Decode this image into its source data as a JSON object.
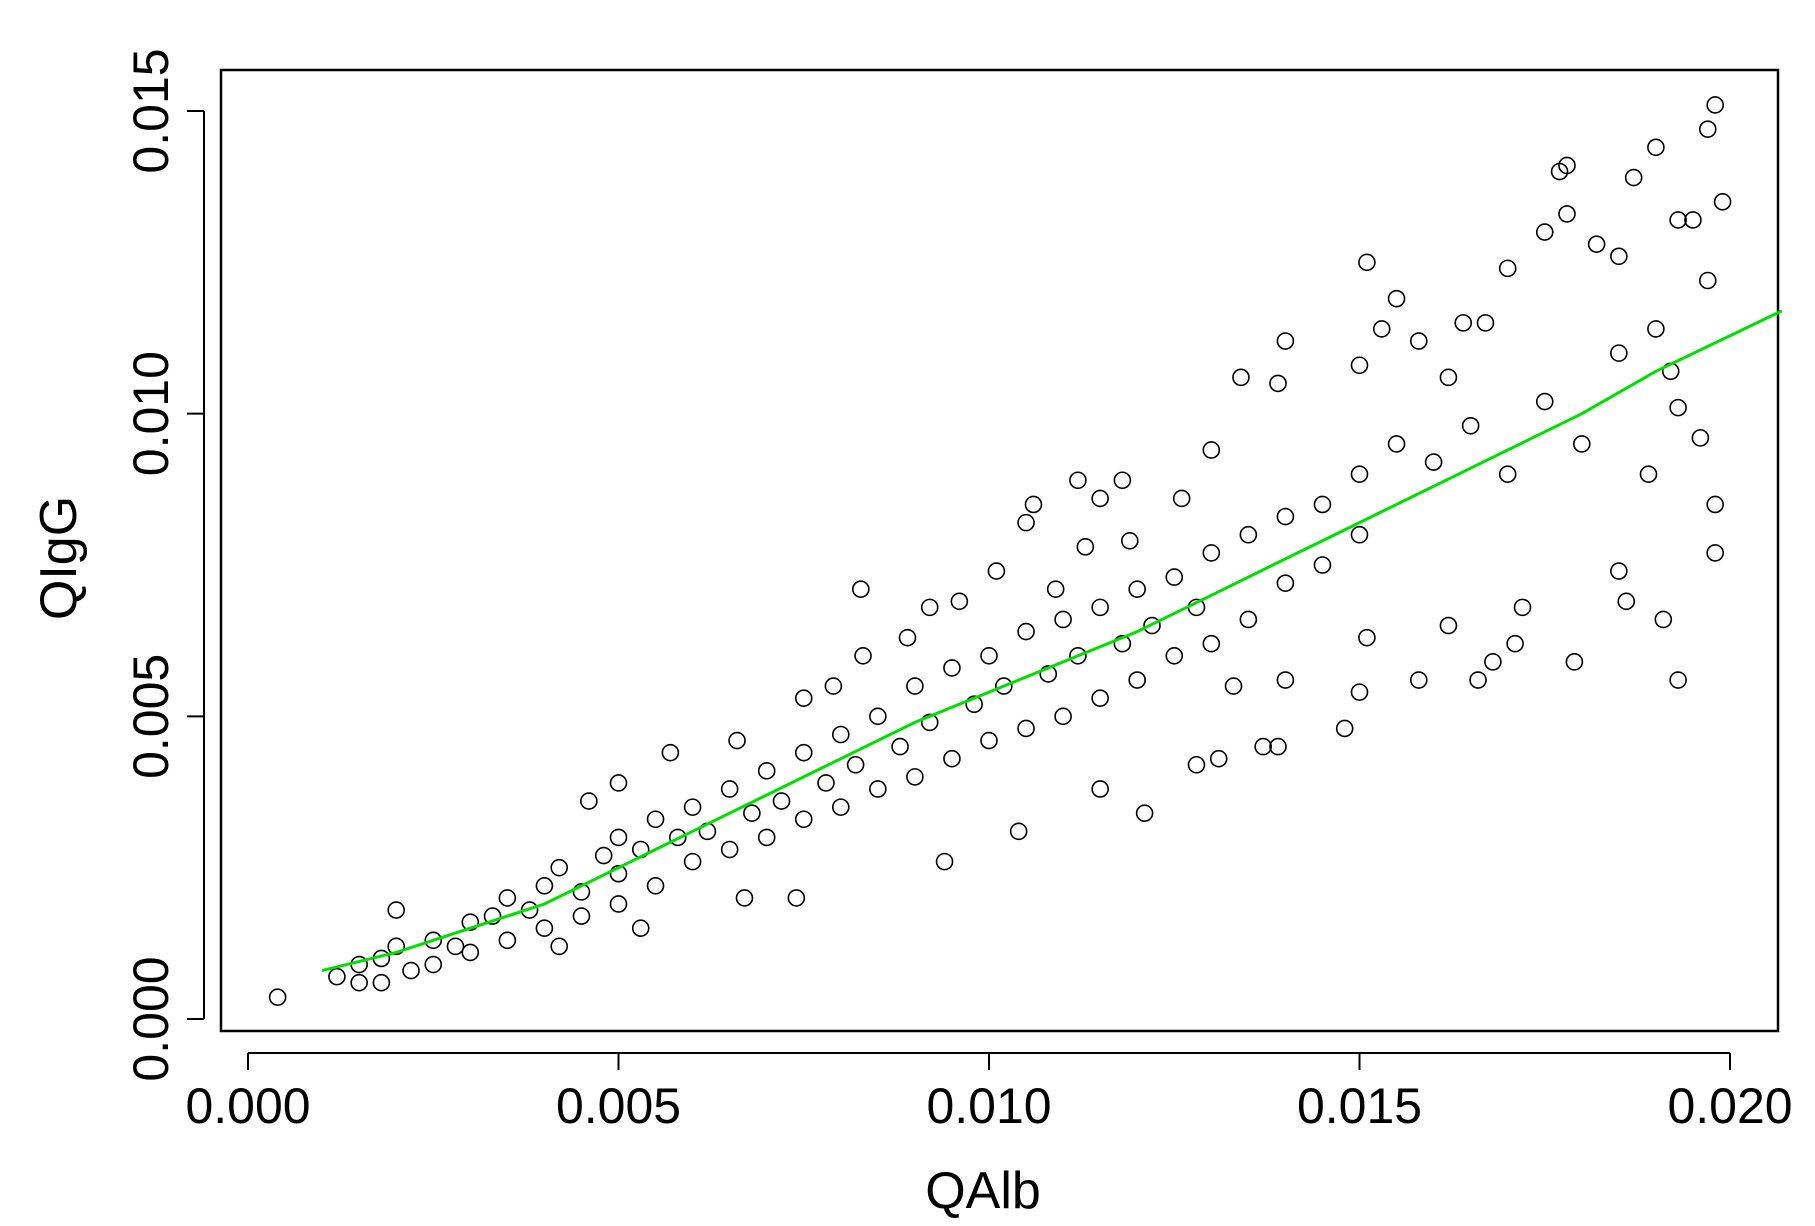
{
  "chart_data": {
    "type": "scatter",
    "title": "",
    "xlabel": "QAlb",
    "ylabel": "QIgG",
    "xlim": [
      -0.0004,
      0.0207
    ],
    "ylim": [
      -0.0004,
      0.0158
    ],
    "x_ticks": [
      0.0,
      0.005,
      0.01,
      0.015,
      0.02
    ],
    "x_tick_labels": [
      "0.000",
      "0.005",
      "0.010",
      "0.015",
      "0.020"
    ],
    "y_ticks": [
      0.0,
      0.005,
      0.01,
      0.015
    ],
    "y_tick_labels": [
      "0.000",
      "0.005",
      "0.010",
      "0.015"
    ],
    "grid": false,
    "legend": "none",
    "marker": "open-circle",
    "colors": {
      "points": "#000000",
      "fit_line": "#00e000"
    },
    "points": [
      [
        0.0198,
        0.0151
      ],
      [
        0.0197,
        0.0147
      ],
      [
        0.019,
        0.0144
      ],
      [
        0.0178,
        0.0141
      ],
      [
        0.0177,
        0.014
      ],
      [
        0.0199,
        0.0135
      ],
      [
        0.0187,
        0.0139
      ],
      [
        0.0178,
        0.0133
      ],
      [
        0.0175,
        0.013
      ],
      [
        0.0151,
        0.0125
      ],
      [
        0.017,
        0.0124
      ],
      [
        0.0155,
        0.0119
      ],
      [
        0.014,
        0.0112
      ],
      [
        0.0134,
        0.0106
      ],
      [
        0.0164,
        0.0115
      ],
      [
        0.0167,
        0.0115
      ],
      [
        0.0197,
        0.0122
      ],
      [
        0.0193,
        0.0132
      ],
      [
        0.0195,
        0.0132
      ],
      [
        0.0185,
        0.0126
      ],
      [
        0.0182,
        0.0128
      ],
      [
        0.00827,
        0.0071
      ],
      [
        0.0112,
        0.0089
      ],
      [
        0.0118,
        0.0089
      ],
      [
        0.0121,
        0.0034
      ],
      [
        0.0094,
        0.0026
      ],
      [
        0.0074,
        0.002
      ],
      [
        0.0004,
        0.00036
      ],
      [
        0.0193,
        0.0056
      ],
      [
        0.0179,
        0.0059
      ],
      [
        0.0158,
        0.0056
      ],
      [
        0.0166,
        0.0056
      ],
      [
        0.0148,
        0.0048
      ],
      [
        0.0198,
        0.0077
      ],
      [
        0.0198,
        0.0085
      ],
      [
        0.0191,
        0.0066
      ],
      [
        0.0186,
        0.0069
      ],
      [
        0.0185,
        0.0074
      ],
      [
        0.0189,
        0.009
      ],
      [
        0.0192,
        0.0107
      ],
      [
        0.0193,
        0.0101
      ],
      [
        0.0196,
        0.0096
      ],
      [
        0.0131,
        0.0043
      ],
      [
        0.0128,
        0.0042
      ],
      [
        0.0139,
        0.0045
      ],
      [
        0.0137,
        0.0045
      ],
      [
        0.0133,
        0.0055
      ],
      [
        0.014,
        0.0056
      ],
      [
        0.015,
        0.0054
      ],
      [
        0.0162,
        0.0065
      ],
      [
        0.0151,
        0.0063
      ],
      [
        0.0171,
        0.0062
      ],
      [
        0.0168,
        0.0059
      ],
      [
        0.0172,
        0.0068
      ],
      [
        0.013,
        0.0094
      ],
      [
        0.0126,
        0.0086
      ],
      [
        0.0139,
        0.0105
      ],
      [
        0.0153,
        0.0114
      ],
      [
        0.015,
        0.0108
      ],
      [
        0.0158,
        0.0112
      ],
      [
        0.0162,
        0.0106
      ],
      [
        0.0105,
        0.0082
      ],
      [
        0.0106,
        0.0085
      ],
      [
        0.0115,
        0.0086
      ],
      [
        0.0119,
        0.0079
      ],
      [
        0.0104,
        0.0031
      ],
      [
        0.0115,
        0.0038
      ],
      [
        0.0057,
        0.0044
      ],
      [
        0.0066,
        0.0046
      ],
      [
        0.0046,
        0.0036
      ],
      [
        0.005,
        0.0039
      ],
      [
        0.002,
        0.0018
      ],
      [
        0.0042,
        0.0012
      ],
      [
        0.0053,
        0.0015
      ],
      [
        0.0067,
        0.002
      ],
      [
        0.0075,
        0.0053
      ],
      [
        0.0079,
        0.0055
      ],
      [
        0.0083,
        0.006
      ],
      [
        0.0089,
        0.0063
      ],
      [
        0.0092,
        0.0068
      ],
      [
        0.0096,
        0.0069
      ],
      [
        0.0101,
        0.0074
      ],
      [
        0.0109,
        0.0071
      ],
      [
        0.0113,
        0.0078
      ],
      [
        0.0012,
        0.0007
      ],
      [
        0.0015,
        0.0006
      ],
      [
        0.0015,
        0.0009
      ],
      [
        0.0018,
        0.001
      ],
      [
        0.0018,
        0.0006
      ],
      [
        0.002,
        0.0012
      ],
      [
        0.0022,
        0.0008
      ],
      [
        0.0025,
        0.0013
      ],
      [
        0.0025,
        0.0009
      ],
      [
        0.0028,
        0.0012
      ],
      [
        0.003,
        0.0016
      ],
      [
        0.003,
        0.0011
      ],
      [
        0.0033,
        0.0017
      ],
      [
        0.0035,
        0.0013
      ],
      [
        0.0035,
        0.002
      ],
      [
        0.0038,
        0.0018
      ],
      [
        0.004,
        0.0022
      ],
      [
        0.004,
        0.0015
      ],
      [
        0.0042,
        0.0025
      ],
      [
        0.0045,
        0.0021
      ],
      [
        0.0045,
        0.0017
      ],
      [
        0.0048,
        0.0027
      ],
      [
        0.005,
        0.0024
      ],
      [
        0.005,
        0.003
      ],
      [
        0.005,
        0.0019
      ],
      [
        0.0053,
        0.0028
      ],
      [
        0.0055,
        0.0033
      ],
      [
        0.0055,
        0.0022
      ],
      [
        0.0058,
        0.003
      ],
      [
        0.006,
        0.0035
      ],
      [
        0.006,
        0.0026
      ],
      [
        0.0062,
        0.0031
      ],
      [
        0.0065,
        0.0038
      ],
      [
        0.0065,
        0.0028
      ],
      [
        0.0068,
        0.0034
      ],
      [
        0.007,
        0.0041
      ],
      [
        0.007,
        0.003
      ],
      [
        0.0072,
        0.0036
      ],
      [
        0.0075,
        0.0044
      ],
      [
        0.0075,
        0.0033
      ],
      [
        0.0078,
        0.0039
      ],
      [
        0.008,
        0.0047
      ],
      [
        0.008,
        0.0035
      ],
      [
        0.0082,
        0.0042
      ],
      [
        0.0085,
        0.005
      ],
      [
        0.0085,
        0.0038
      ],
      [
        0.0088,
        0.0045
      ],
      [
        0.009,
        0.0055
      ],
      [
        0.009,
        0.004
      ],
      [
        0.0092,
        0.0049
      ],
      [
        0.0095,
        0.0058
      ],
      [
        0.0095,
        0.0043
      ],
      [
        0.0098,
        0.0052
      ],
      [
        0.01,
        0.006
      ],
      [
        0.01,
        0.0046
      ],
      [
        0.0102,
        0.0055
      ],
      [
        0.0105,
        0.0064
      ],
      [
        0.0105,
        0.0048
      ],
      [
        0.0108,
        0.0057
      ],
      [
        0.011,
        0.0066
      ],
      [
        0.011,
        0.005
      ],
      [
        0.0112,
        0.006
      ],
      [
        0.0115,
        0.0068
      ],
      [
        0.0115,
        0.0053
      ],
      [
        0.0118,
        0.0062
      ],
      [
        0.012,
        0.0071
      ],
      [
        0.012,
        0.0056
      ],
      [
        0.0122,
        0.0065
      ],
      [
        0.0125,
        0.0073
      ],
      [
        0.0125,
        0.006
      ],
      [
        0.0128,
        0.0068
      ],
      [
        0.013,
        0.0077
      ],
      [
        0.013,
        0.0062
      ],
      [
        0.0135,
        0.008
      ],
      [
        0.0135,
        0.0066
      ],
      [
        0.014,
        0.0083
      ],
      [
        0.014,
        0.0072
      ],
      [
        0.0145,
        0.0085
      ],
      [
        0.0145,
        0.0075
      ],
      [
        0.015,
        0.009
      ],
      [
        0.015,
        0.008
      ],
      [
        0.0155,
        0.0095
      ],
      [
        0.016,
        0.0092
      ],
      [
        0.0165,
        0.0098
      ],
      [
        0.017,
        0.009
      ],
      [
        0.0175,
        0.0102
      ],
      [
        0.018,
        0.0095
      ],
      [
        0.0185,
        0.011
      ],
      [
        0.019,
        0.0114
      ]
    ],
    "fit_line": [
      [
        0.001,
        0.0008
      ],
      [
        0.002,
        0.0011
      ],
      [
        0.003,
        0.0015
      ],
      [
        0.004,
        0.0019
      ],
      [
        0.005,
        0.0025
      ],
      [
        0.006,
        0.0031
      ],
      [
        0.007,
        0.0037
      ],
      [
        0.008,
        0.0043
      ],
      [
        0.009,
        0.0049
      ],
      [
        0.01,
        0.0054
      ],
      [
        0.011,
        0.0059
      ],
      [
        0.012,
        0.0064
      ],
      [
        0.013,
        0.007
      ],
      [
        0.014,
        0.0076
      ],
      [
        0.015,
        0.0082
      ],
      [
        0.016,
        0.0088
      ],
      [
        0.017,
        0.0094
      ],
      [
        0.018,
        0.01
      ],
      [
        0.019,
        0.0107
      ],
      [
        0.0207,
        0.0117
      ]
    ]
  }
}
